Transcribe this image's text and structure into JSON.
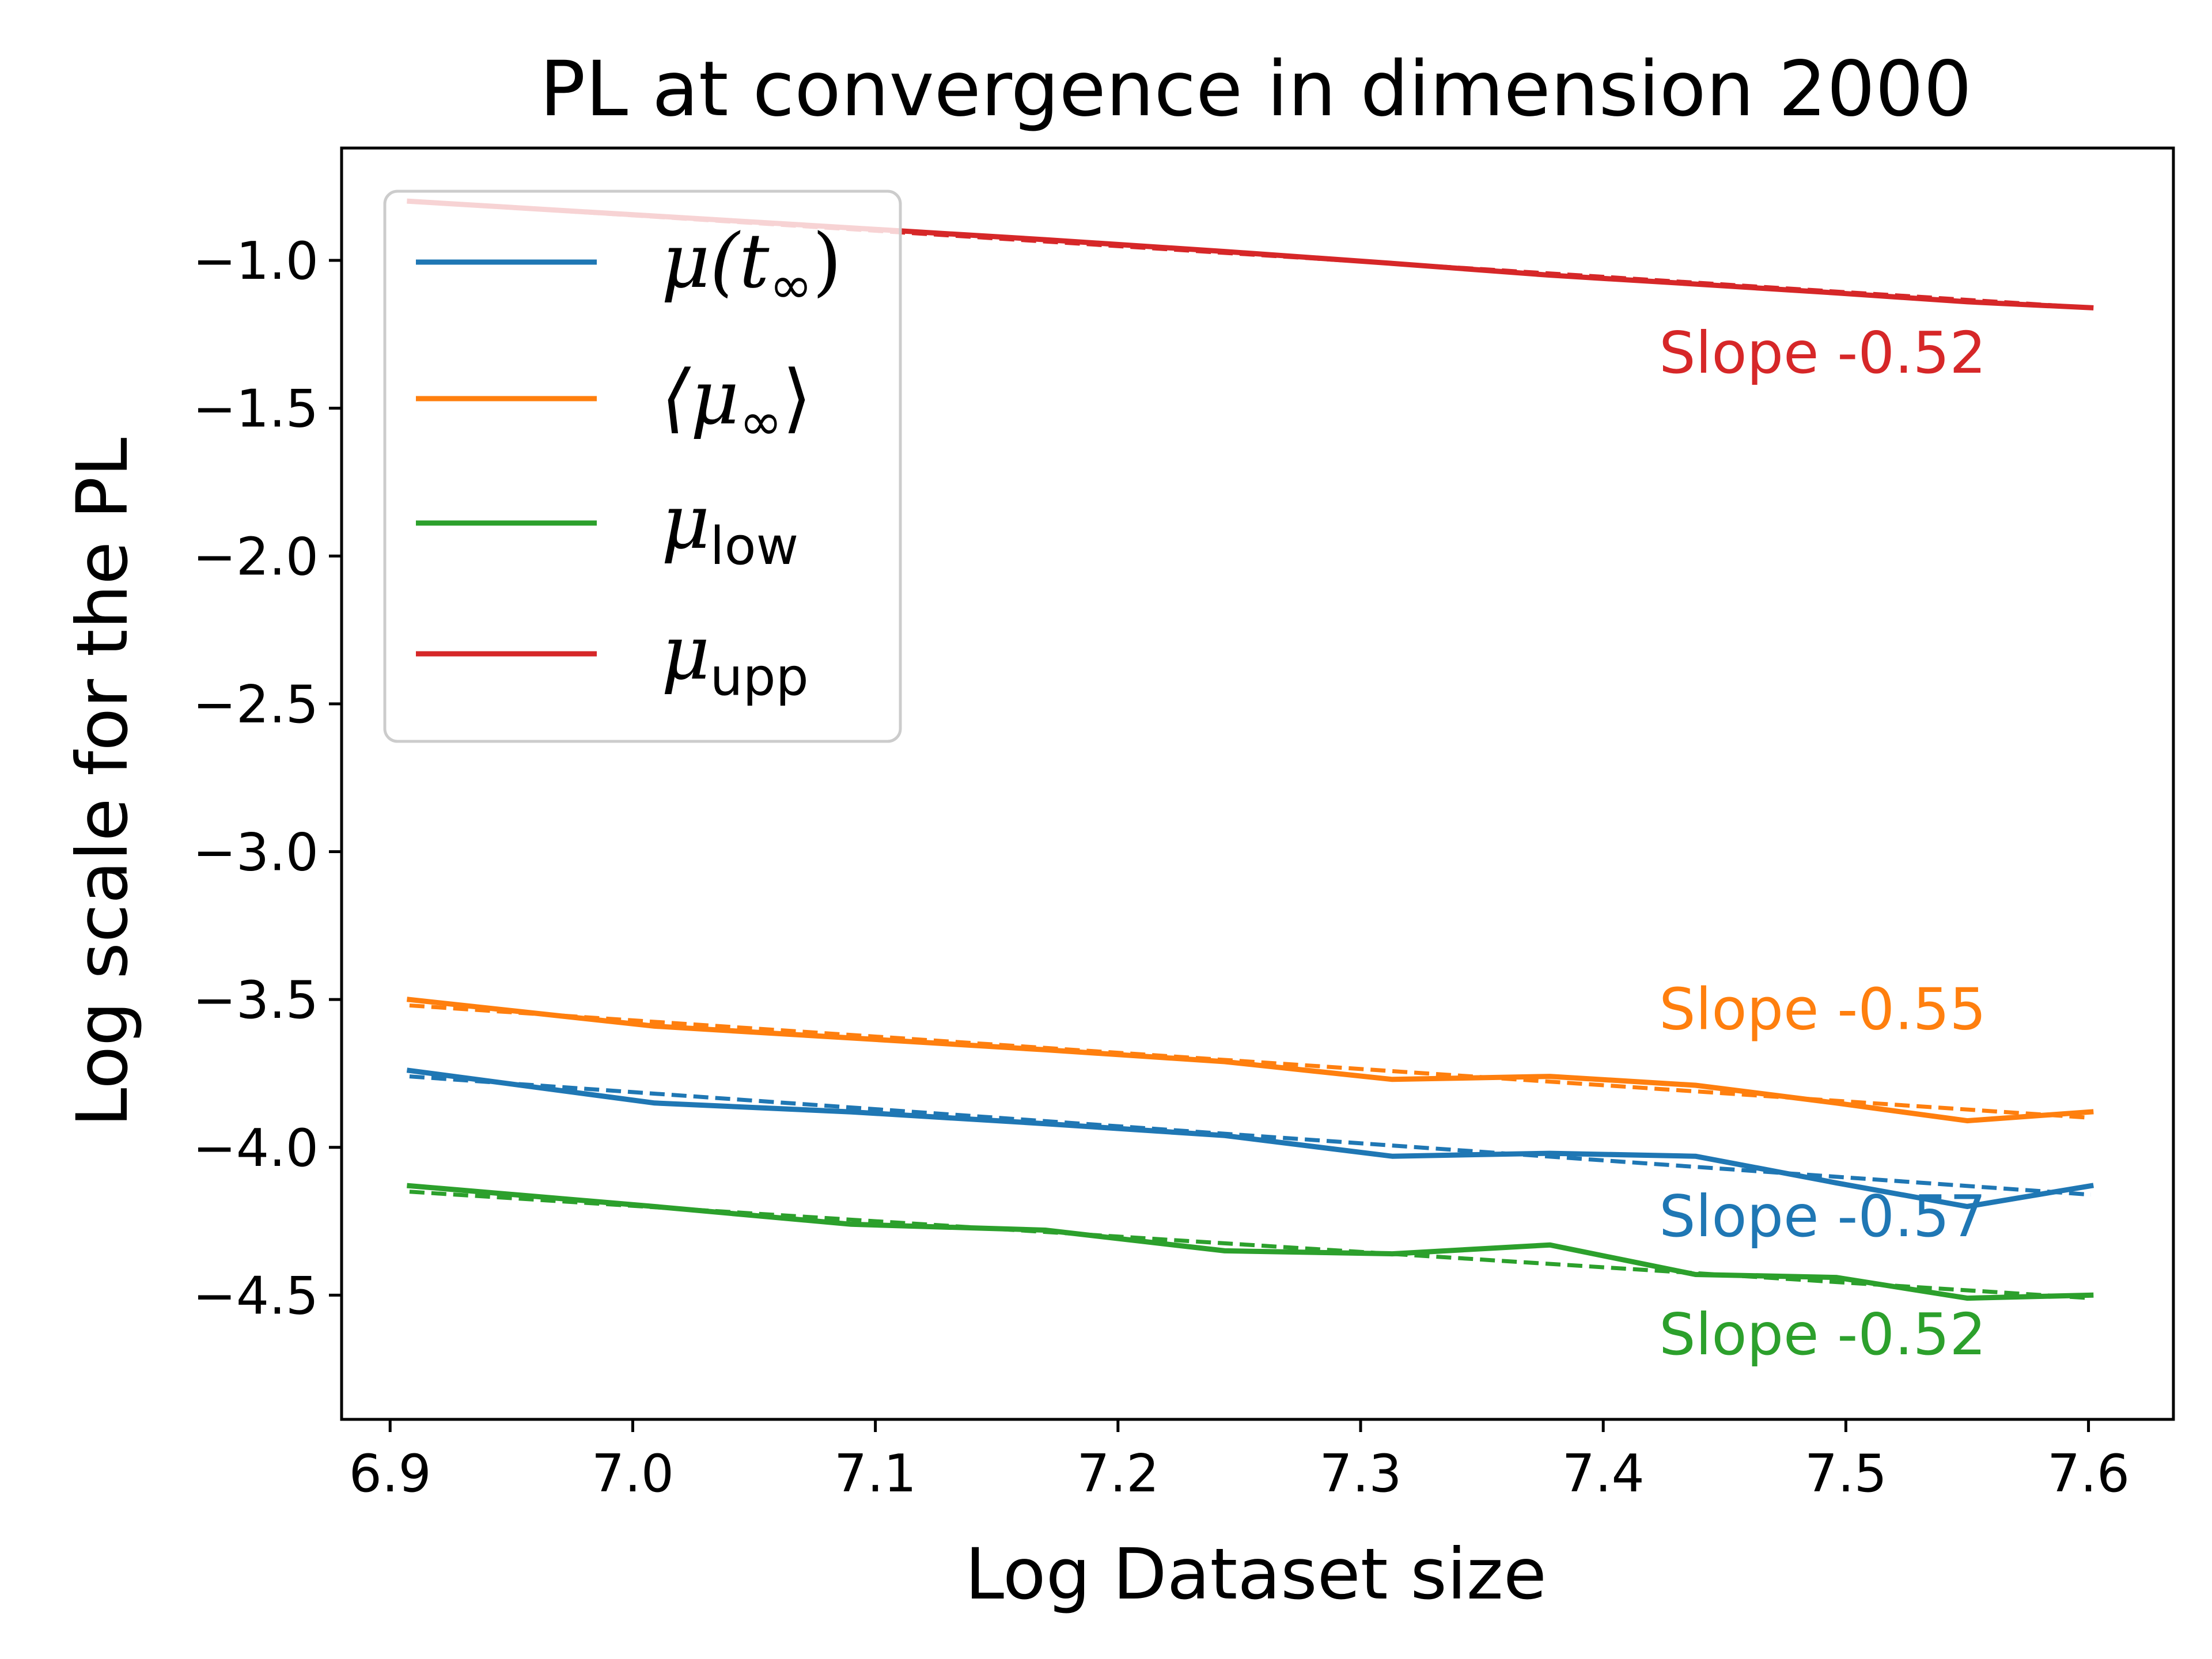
{
  "chart_data": {
    "type": "line",
    "title": "PL at convergence in dimension 2000",
    "xlabel": "Log Dataset size",
    "ylabel": "Log scale for the PL",
    "xlim": [
      6.88,
      7.635
    ],
    "ylim": [
      -4.92,
      -0.62
    ],
    "xticks": [
      6.9,
      7.0,
      7.1,
      7.2,
      7.3,
      7.4,
      7.5,
      7.6
    ],
    "xtick_labels": [
      "6.9",
      "7.0",
      "7.1",
      "7.2",
      "7.3",
      "7.4",
      "7.5",
      "7.6"
    ],
    "yticks": [
      -1.0,
      -1.5,
      -2.0,
      -2.5,
      -3.0,
      -3.5,
      -4.0,
      -4.5
    ],
    "ytick_labels": [
      "−1.0",
      "−1.5",
      "−2.0",
      "−2.5",
      "−3.0",
      "−3.5",
      "−4.0",
      "−4.5"
    ],
    "x": [
      6.908,
      7.009,
      7.09,
      7.17,
      7.244,
      7.313,
      7.378,
      7.438,
      7.496,
      7.55,
      7.601
    ],
    "legend_position": "upper-left",
    "series": [
      {
        "name": "μ(t∞)",
        "legend_main": "μ(t",
        "legend_sub": "∞",
        "legend_tail": ")",
        "color": "#1f77b4",
        "values": [
          -3.74,
          -3.85,
          -3.88,
          -3.92,
          -3.96,
          -4.03,
          -4.02,
          -4.03,
          -4.12,
          -4.2,
          -4.13
        ],
        "fit": [
          -3.76,
          -4.16
        ],
        "slope_label": "Slope -0.57"
      },
      {
        "name": "⟨μ∞⟩",
        "legend_main": "⟨μ",
        "legend_sub": "∞",
        "legend_tail": "⟩",
        "color": "#ff7f0e",
        "values": [
          -3.5,
          -3.59,
          -3.63,
          -3.67,
          -3.71,
          -3.77,
          -3.76,
          -3.79,
          -3.85,
          -3.91,
          -3.88
        ],
        "fit": [
          -3.52,
          -3.9
        ],
        "slope_label": "Slope -0.55"
      },
      {
        "name": "μlow",
        "legend_main": "μ",
        "legend_sub": "low",
        "legend_tail": "",
        "color": "#2ca02c",
        "values": [
          -4.13,
          -4.2,
          -4.26,
          -4.28,
          -4.35,
          -4.36,
          -4.33,
          -4.43,
          -4.44,
          -4.51,
          -4.5
        ],
        "fit": [
          -4.15,
          -4.51
        ],
        "slope_label": "Slope -0.52"
      },
      {
        "name": "μupp",
        "legend_main": "μ",
        "legend_sub": "upp",
        "legend_tail": "",
        "color": "#d62728",
        "values": [
          -0.8,
          -0.85,
          -0.89,
          -0.93,
          -0.97,
          -1.01,
          -1.05,
          -1.08,
          -1.11,
          -1.14,
          -1.16
        ],
        "fit": [
          -0.8,
          -1.16
        ],
        "slope_label": "Slope -0.52"
      }
    ],
    "annotation_order": [
      3,
      1,
      0,
      2
    ],
    "annotation_y": [
      -1.38,
      -3.6,
      -4.3,
      -4.7
    ],
    "annotation_x": 7.423
  }
}
